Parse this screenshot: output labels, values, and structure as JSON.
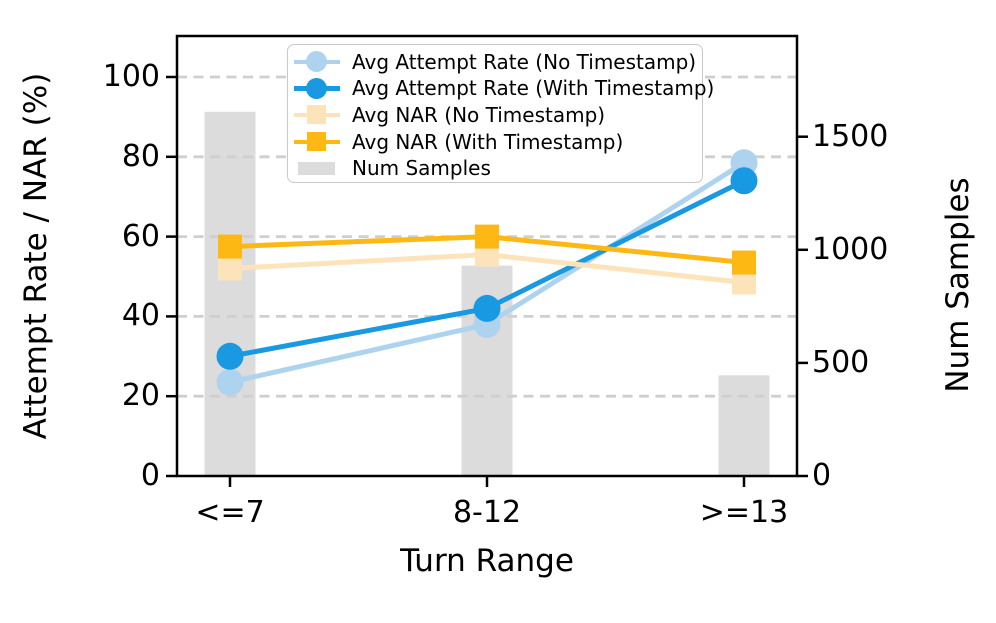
{
  "chart_data": {
    "type": "line+bar",
    "title": "",
    "categories": [
      "<=7",
      "8-12",
      ">=13"
    ],
    "xlabel": "Turn Range",
    "ylabel_left": "Attempt Rate / NAR (%)",
    "ylabel_right": "Num Samples",
    "left_ticks": [
      "0",
      "20",
      "40",
      "60",
      "80",
      "100"
    ],
    "right_ticks": [
      "0",
      "500",
      "1000",
      "1500"
    ],
    "ylim_left": [
      0,
      110
    ],
    "ylim_right": [
      0,
      1945
    ],
    "grid": "horizontal dashed at 20/40/60/80/100 (left axis)",
    "legend_position": "upper center",
    "series": [
      {
        "name": "Avg Attempt Rate (No Timestamp)",
        "type": "line",
        "marker": "circle",
        "axis": "left",
        "color": "#aed3ef",
        "values": [
          23.5,
          38,
          78.5
        ]
      },
      {
        "name": "Avg Attempt Rate (With Timestamp)",
        "type": "line",
        "marker": "circle",
        "axis": "left",
        "color": "#1899e2",
        "values": [
          30,
          42,
          74
        ]
      },
      {
        "name": "Avg NAR (No Timestamp)",
        "type": "line",
        "marker": "square",
        "axis": "left",
        "color": "#fce3ba",
        "values": [
          52,
          55.5,
          48.5
        ]
      },
      {
        "name": "Avg NAR (With Timestamp)",
        "type": "line",
        "marker": "square",
        "axis": "left",
        "color": "#fdb813",
        "values": [
          57.5,
          60,
          53.5
        ]
      },
      {
        "name": "Num Samples",
        "type": "bar",
        "marker": "rect",
        "axis": "right",
        "color": "#dcdcdc",
        "values": [
          1610,
          930,
          445
        ]
      }
    ],
    "colors": {
      "attempt_no_ts": "#aed3ef",
      "attempt_with_ts": "#1899e2",
      "nar_no_ts": "#fce3ba",
      "nar_with_ts": "#fdb813",
      "bars": "#dcdcdc",
      "grid": "#cfcfcf",
      "axis": "#000000"
    }
  }
}
